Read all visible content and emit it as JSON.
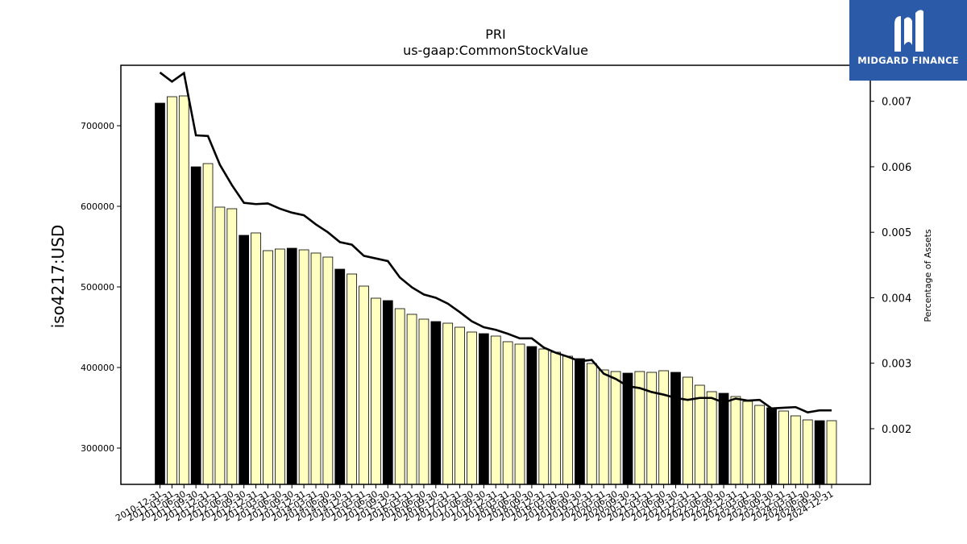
{
  "chart_data": {
    "type": "bar+line",
    "title": "PRI",
    "subtitle": "us-gaap:CommonStockValue",
    "ylabel": "iso4217:USD",
    "y2label": "Percentage of Assets",
    "ylim": [
      255000,
      775000
    ],
    "y2lim": [
      0.00115,
      0.00755
    ],
    "yticks": [
      300000,
      400000,
      500000,
      600000,
      700000
    ],
    "y2ticks": [
      0.002,
      0.003,
      0.004,
      0.005,
      0.006,
      0.007
    ],
    "colors": {
      "annual_bar": "#000000",
      "quarter_bar": "#ffffc0",
      "line": "#000000"
    },
    "categories": [
      "2010-12-31",
      "2011-03-31",
      "2011-06-30",
      "2011-09-30",
      "2011-12-31",
      "2012-03-31",
      "2012-06-30",
      "2012-09-30",
      "2012-12-31",
      "2013-03-31",
      "2013-06-30",
      "2013-09-30",
      "2013-12-31",
      "2014-03-31",
      "2014-06-30",
      "2014-09-30",
      "2014-12-31",
      "2015-03-31",
      "2015-06-30",
      "2015-09-30",
      "2015-12-31",
      "2016-03-31",
      "2016-06-30",
      "2016-09-30",
      "2016-12-31",
      "2017-03-31",
      "2017-06-30",
      "2017-09-30",
      "2017-12-31",
      "2018-03-31",
      "2018-06-30",
      "2018-09-30",
      "2018-12-31",
      "2019-03-31",
      "2019-06-30",
      "2019-09-30",
      "2019-12-31",
      "2020-03-31",
      "2020-06-30",
      "2020-09-30",
      "2020-12-31",
      "2021-03-31",
      "2021-06-30",
      "2021-09-30",
      "2021-12-31",
      "2022-03-31",
      "2022-06-30",
      "2022-09-30",
      "2022-12-31",
      "2023-03-31",
      "2023-06-30",
      "2023-09-30",
      "2023-12-31",
      "2024-03-31",
      "2024-06-30",
      "2024-09-30",
      "2024-12-31"
    ],
    "annual": [
      true,
      false,
      false,
      true,
      false,
      false,
      false,
      true,
      false,
      false,
      false,
      true,
      false,
      false,
      false,
      true,
      false,
      false,
      false,
      true,
      false,
      false,
      false,
      true,
      false,
      false,
      false,
      true,
      false,
      false,
      false,
      true,
      false,
      false,
      false,
      true,
      false,
      false,
      false,
      true,
      false,
      false,
      false,
      true,
      false,
      false,
      false,
      true,
      false,
      false,
      false,
      true,
      false,
      false,
      false,
      true,
      false
    ],
    "values": [
      728000,
      736000,
      737000,
      649000,
      653000,
      599000,
      597000,
      564000,
      567000,
      545000,
      547000,
      548000,
      546000,
      542000,
      537000,
      522000,
      516000,
      501000,
      486000,
      483000,
      473000,
      466000,
      460000,
      457000,
      455000,
      450000,
      444000,
      442000,
      439000,
      432000,
      429000,
      426000,
      423000,
      419000,
      414000,
      411000,
      405000,
      397000,
      395000,
      393000,
      395000,
      394000,
      396000,
      394000,
      388000,
      378000,
      370000,
      368000,
      364000,
      358000,
      353000,
      350000,
      346000,
      340000,
      335000,
      334000,
      334000
    ],
    "pct_assets": [
      0.00744,
      0.0073,
      0.00743,
      0.00648,
      0.00647,
      0.00603,
      0.00572,
      0.00545,
      0.00543,
      0.00544,
      0.00536,
      0.0053,
      0.00526,
      0.00512,
      0.005,
      0.00485,
      0.00481,
      0.00464,
      0.0046,
      0.00456,
      0.00431,
      0.00416,
      0.00405,
      0.004,
      0.00391,
      0.00378,
      0.00364,
      0.00355,
      0.00351,
      0.00345,
      0.00338,
      0.00338,
      0.00324,
      0.00316,
      0.0031,
      0.00303,
      0.00305,
      0.00284,
      0.00276,
      0.00265,
      0.00262,
      0.00256,
      0.00252,
      0.00247,
      0.00244,
      0.00247,
      0.00247,
      0.0024,
      0.00246,
      0.00243,
      0.00244,
      0.00231,
      0.00232,
      0.00233,
      0.00225,
      0.00228,
      0.00228
    ]
  },
  "logo": {
    "text": "MIDGARD FINANCE",
    "icon": "midgard-m-icon"
  }
}
